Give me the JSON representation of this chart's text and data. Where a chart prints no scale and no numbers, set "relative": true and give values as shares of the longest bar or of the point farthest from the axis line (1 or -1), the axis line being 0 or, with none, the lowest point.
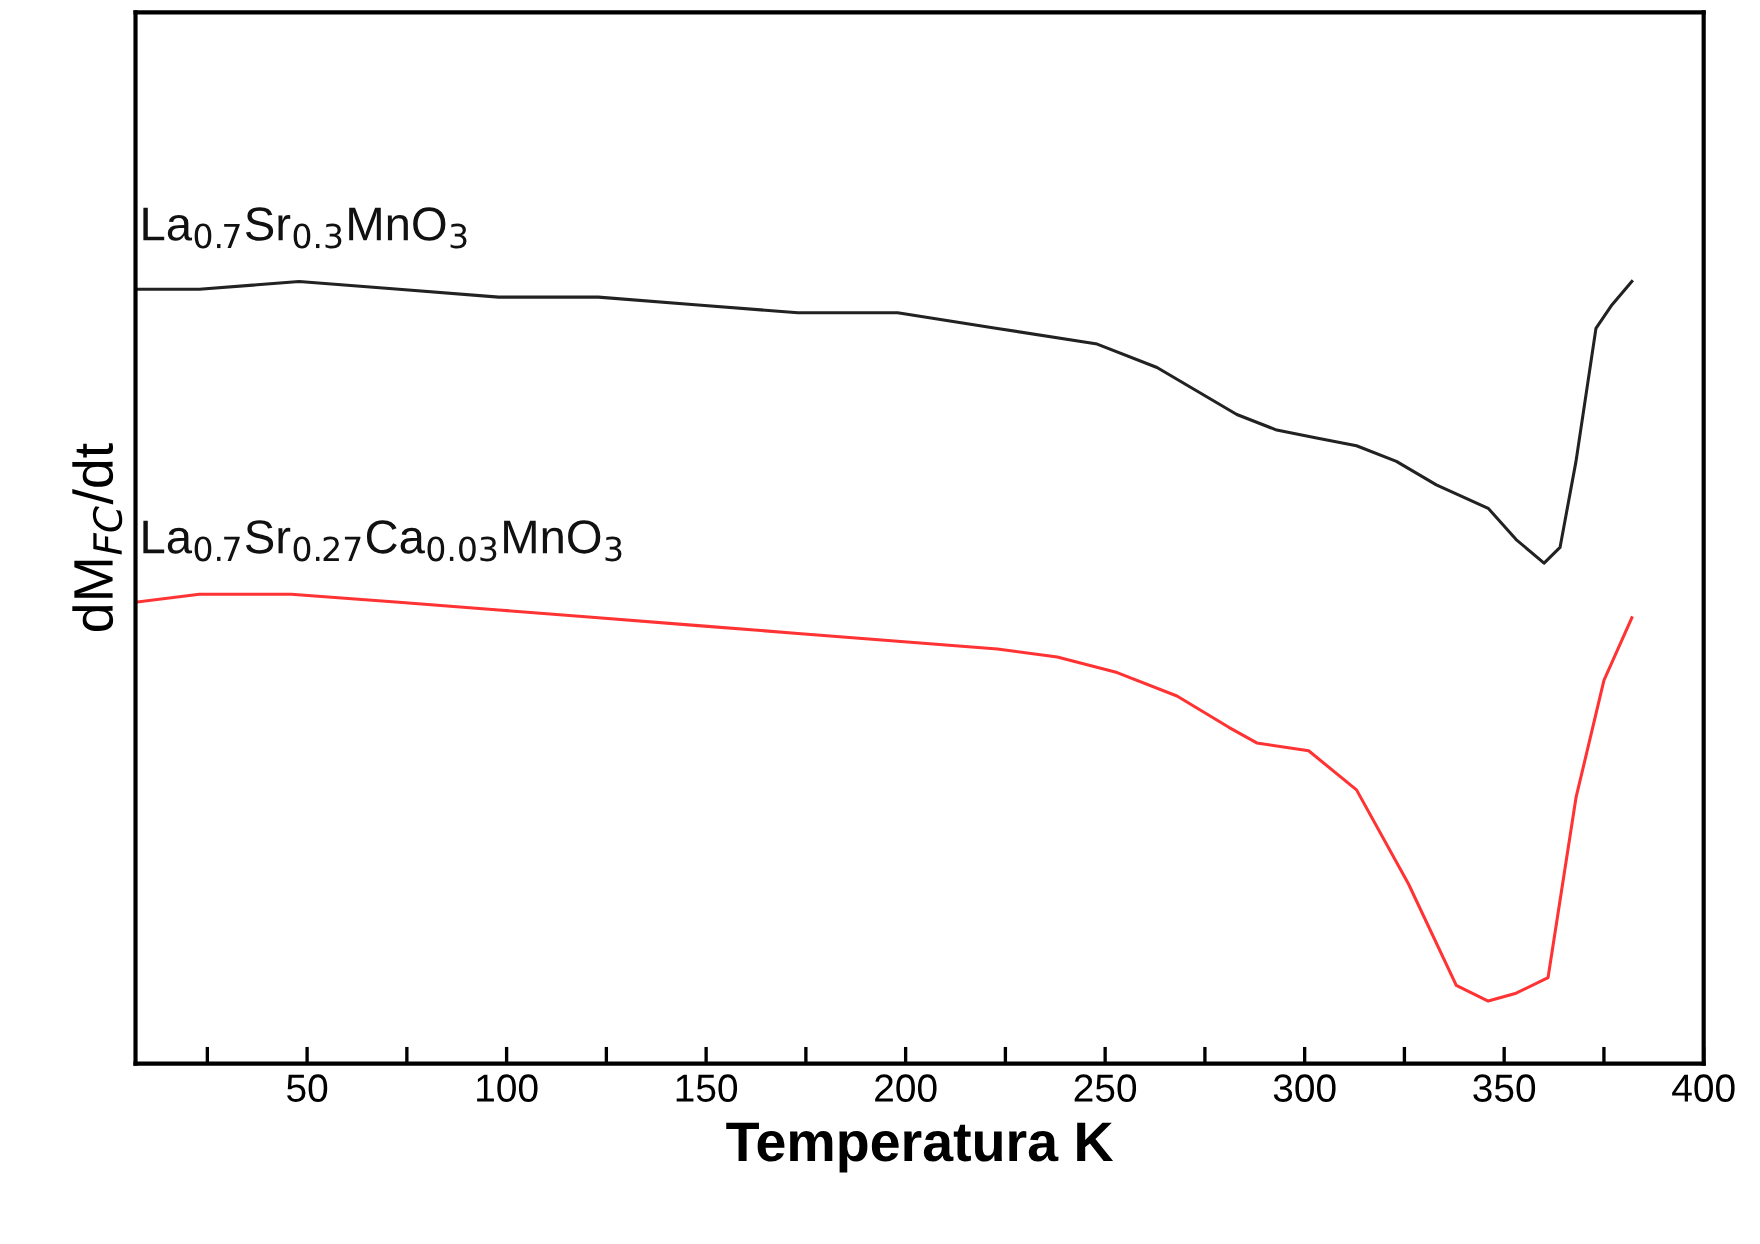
{
  "chart_data": {
    "type": "line",
    "relative": true,
    "xlabel": "Temperatura K",
    "ylabel": "dM$_{FC}$/dt",
    "xlim": [
      7,
      400
    ],
    "xticks": [
      {
        "value": 25,
        "label": null
      },
      50,
      {
        "value": 75,
        "label": null
      },
      100,
      {
        "value": 125,
        "label": null
      },
      150,
      {
        "value": 175,
        "label": null
      },
      200,
      {
        "value": 225,
        "label": null
      },
      250,
      {
        "value": 275,
        "label": null
      },
      300,
      {
        "value": 325,
        "label": null
      },
      350,
      {
        "value": 375,
        "label": null
      },
      400
    ],
    "tick_labels": "x",
    "grid": false,
    "line_style": "solid",
    "marker": "none",
    "series": [
      {
        "name": "La$_{0.7}$Sr$_{0.3}$MnO$_{3}$",
        "color": "#222222",
        "x": [
          7,
          23,
          48,
          73,
          98,
          123,
          148,
          173,
          198,
          223,
          248,
          263,
          273,
          283,
          293,
          303,
          313,
          323,
          333,
          346,
          353,
          360,
          364,
          368,
          373,
          377,
          382
        ],
        "values": [
          0.99,
          0.99,
          1.0,
          0.99,
          0.98,
          0.98,
          0.97,
          0.96,
          0.96,
          0.94,
          0.92,
          0.89,
          0.86,
          0.83,
          0.81,
          0.8,
          0.79,
          0.77,
          0.74,
          0.71,
          0.67,
          0.64,
          0.66,
          0.77,
          0.94,
          0.97,
          1.0
        ]
      },
      {
        "name": "La$_{0.7}$Sr$_{0.27}$Ca$_{0.03}$MnO$_{3}$",
        "color": "#ff3333",
        "x": [
          7,
          23,
          43,
          46,
          73,
          98,
          123,
          148,
          173,
          198,
          223,
          238,
          253,
          268,
          281,
          288,
          301,
          313,
          326,
          338,
          346,
          353,
          361,
          368,
          375,
          382
        ],
        "values": [
          0.59,
          0.6,
          0.6,
          0.6,
          0.59,
          0.58,
          0.57,
          0.56,
          0.55,
          0.54,
          0.53,
          0.52,
          0.5,
          0.47,
          0.43,
          0.41,
          0.4,
          0.35,
          0.23,
          0.1,
          0.08,
          0.09,
          0.11,
          0.34,
          0.49,
          0.57
        ]
      }
    ]
  }
}
